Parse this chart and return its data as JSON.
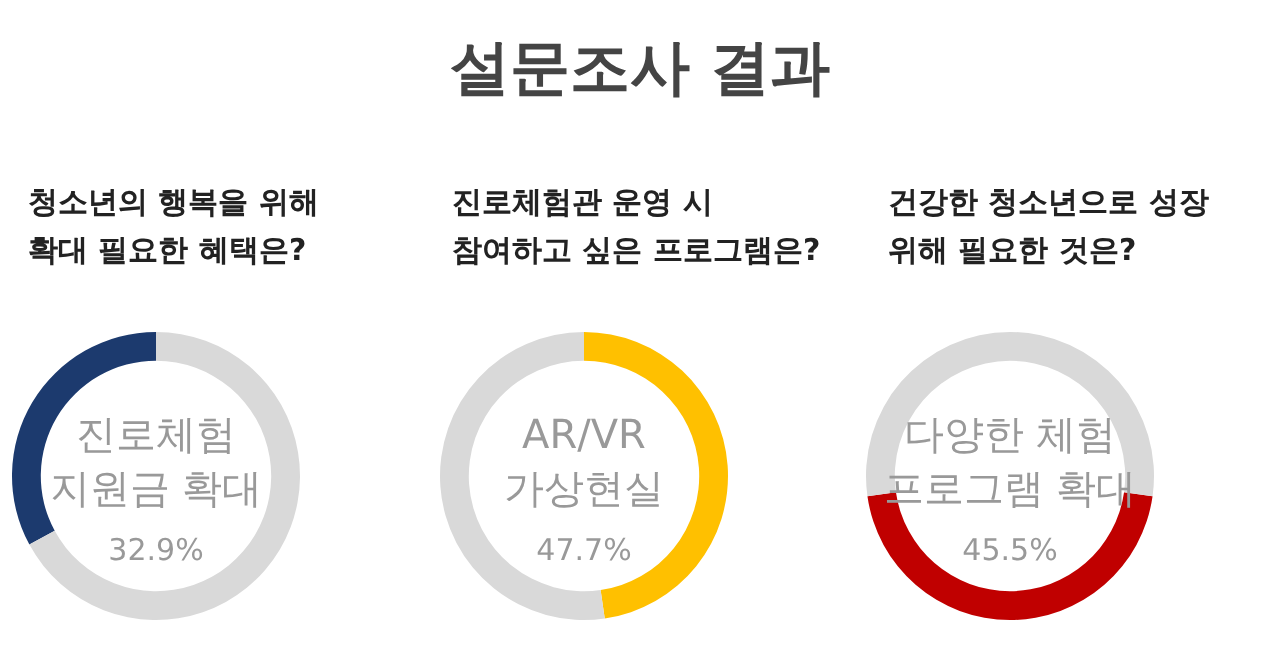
{
  "chart_data": [
    {
      "type": "other",
      "title": "설문조사 결과"
    },
    {
      "type": "donut",
      "subtitle": "청소년의 행복을 위해\n확대 필요한 혜택은?",
      "categories": [
        "진로체험\n지원금 확대",
        null
      ],
      "values": [
        32.9,
        67.1
      ],
      "colors": [
        "#1c3a6e",
        "#d9d9d9"
      ],
      "value_labels": [
        "32.9%",
        null
      ]
    },
    {
      "type": "donut",
      "subtitle": "진로체험관 운영 시\n참여하고 싶은 프로그램은?",
      "categories": [
        "AR/VR\n가상현실",
        null
      ],
      "values": [
        47.7,
        52.3
      ],
      "colors": [
        "#ffc000",
        "#d9d9d9"
      ],
      "value_labels": [
        "47.7%",
        null
      ]
    },
    {
      "type": "donut",
      "subtitle": "건강한 청소년으로 성장\n위해 필요한 것은?",
      "categories": [
        "다양한 체험\n프로그램 확대",
        null
      ],
      "values": [
        45.5,
        54.5
      ],
      "colors": [
        "#c00000",
        "#d9d9d9"
      ],
      "value_labels": [
        "45.5%",
        null
      ]
    }
  ]
}
